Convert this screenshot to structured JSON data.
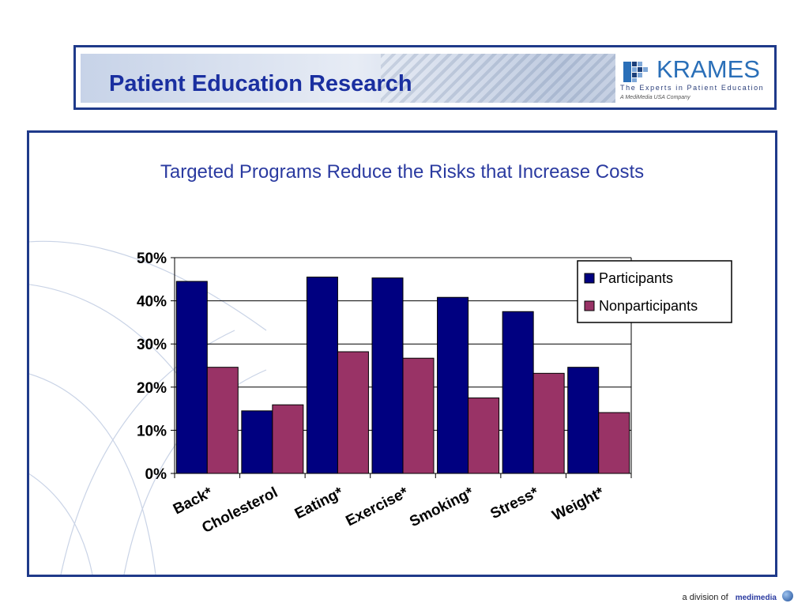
{
  "header": {
    "title": "Patient Education Research",
    "logo": {
      "word": "KRAMES",
      "tagline": "The Experts in Patient Education",
      "sub": "A MediMedia USA Company",
      "icon": "krames-logo-icon"
    }
  },
  "footer": {
    "text": "a division of",
    "brand": "medimedia",
    "icon": "medimedia-globe-icon"
  },
  "colors": {
    "participants": "#000080",
    "nonparticipants": "#993366",
    "frame": "#1f3a8a",
    "title": "#2a3aa0"
  },
  "chart_data": {
    "type": "bar",
    "title": "Targeted Programs Reduce the Risks that Increase Costs",
    "xlabel": "",
    "ylabel": "",
    "categories": [
      "Back*",
      "Cholesterol",
      "Eating*",
      "Exercise*",
      "Smoking*",
      "Stress*",
      "Weight*"
    ],
    "series": [
      {
        "name": "Participants",
        "values": [
          44.5,
          14.5,
          45.5,
          45.3,
          40.8,
          37.5,
          24.6
        ]
      },
      {
        "name": "Nonparticipants",
        "values": [
          24.6,
          15.9,
          28.2,
          26.7,
          17.5,
          23.2,
          14.1
        ]
      }
    ],
    "ylim": [
      0,
      50
    ],
    "yticks": [
      "0%",
      "10%",
      "20%",
      "30%",
      "40%",
      "50%"
    ],
    "grid": true,
    "legend": "top-right"
  }
}
